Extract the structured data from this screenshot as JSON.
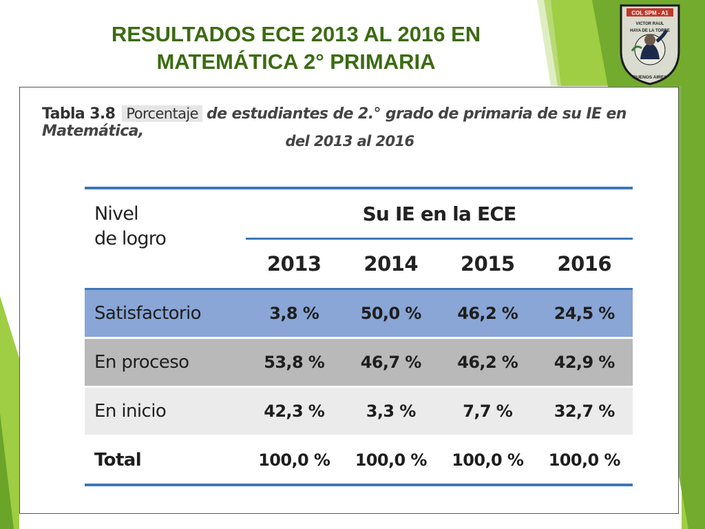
{
  "slide": {
    "title_line1": "RESULTADOS ECE 2013 AL 2016 EN",
    "title_line2": "MATEMÁTICA 2° PRIMARIA"
  },
  "logo": {
    "top_text": "COL SPM - A1",
    "arc_text": "VICTOR RAUL HAYA DE LA TORRE",
    "bottom_text": "BUENOS AIRES"
  },
  "table": {
    "caption_label": "Tabla 3.8",
    "caption_highlight": "Porcentaje",
    "caption_rest": "de estudiantes de 2.° grado de primaria de su IE en Matemática,",
    "caption_line2": "del 2013 al 2016",
    "header_nivel_line1": "Nivel",
    "header_nivel_line2": "de logro",
    "header_group": "Su IE en la ECE",
    "years": [
      "2013",
      "2014",
      "2015",
      "2016"
    ],
    "rows": [
      {
        "label": "Satisfactorio",
        "values": [
          "3,8 %",
          "50,0 %",
          "46,2 %",
          "24,5 %"
        ]
      },
      {
        "label": "En proceso",
        "values": [
          "53,8 %",
          "46,7 %",
          "46,2 %",
          "42,9 %"
        ]
      },
      {
        "label": "En inicio",
        "values": [
          "42,3 %",
          "3,3 %",
          "7,7 %",
          "32,7 %"
        ]
      },
      {
        "label": "Total",
        "values": [
          "100,0 %",
          "100,0 %",
          "100,0 %",
          "100,0 %"
        ]
      }
    ]
  },
  "colors": {
    "green_dark": "#6aa529",
    "green_light": "#9fcd43",
    "satisfactorio_row": "#89a6d6",
    "proceso_row": "#b9b9b9",
    "inicio_row": "#ebebeb",
    "table_rule": "#3e77b8"
  }
}
